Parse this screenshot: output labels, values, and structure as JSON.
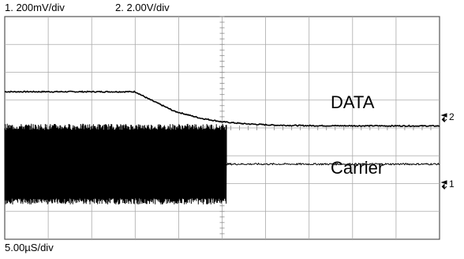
{
  "header": {
    "ch1_scale": "1.  200mV/div",
    "ch2_scale": "2.  2.00V/div"
  },
  "footer": {
    "timebase": "5.00µS/div"
  },
  "chart_data": {
    "type": "line",
    "grid": true,
    "grid_divisions": {
      "x": 10,
      "y": 8
    },
    "series": [
      {
        "name": "DATA",
        "channel": "2",
        "marker_label": "2",
        "points": [
          [
            0,
            1.3
          ],
          [
            3.0,
            1.3
          ],
          [
            3.3,
            1.05
          ],
          [
            3.9,
            0.6
          ],
          [
            4.5,
            0.35
          ],
          [
            5.0,
            0.22
          ],
          [
            5.5,
            0.15
          ],
          [
            6.2,
            0.1
          ],
          [
            7.0,
            0.08
          ],
          [
            10,
            0.07
          ]
        ]
      },
      {
        "name": "Carrier",
        "channel": "1",
        "marker_label": "1",
        "burst_end_div": 5.1,
        "burst_amplitude_div": 1.45,
        "baseline_div": -1.3
      }
    ]
  }
}
